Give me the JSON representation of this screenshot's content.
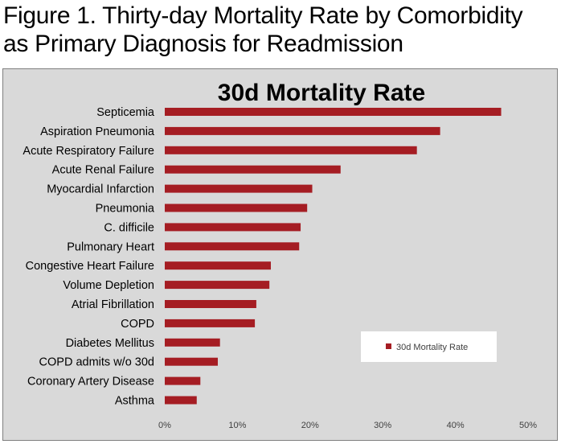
{
  "figure_title_lines": [
    "Figure 1. Thirty-day Mortality Rate by Comorbidity",
    "as Primary Diagnosis for Readmission"
  ],
  "chart_data": {
    "type": "bar",
    "orientation": "horizontal",
    "title": "30d Mortality Rate",
    "categories": [
      "Septicemia",
      "Aspiration Pneumonia",
      "Acute Respiratory Failure",
      "Acute Renal Failure",
      "Myocardial Infarction",
      "Pneumonia",
      "C. difficile",
      "Pulmonary Heart",
      "Congestive Heart Failure",
      "Volume Depletion",
      "Atrial Fibrillation",
      "COPD",
      "Diabetes Mellitus",
      "COPD admits w/o 30d",
      "Coronary Artery Disease",
      "Asthma"
    ],
    "series": [
      {
        "name": "30d Mortality Rate",
        "values": [
          46.3,
          37.9,
          34.7,
          24.2,
          20.3,
          19.6,
          18.7,
          18.5,
          14.6,
          14.4,
          12.6,
          12.4,
          7.6,
          7.3,
          4.9,
          4.4
        ]
      }
    ],
    "xlim": [
      0,
      50
    ],
    "xticks": [
      "0%",
      "10%",
      "20%",
      "30%",
      "40%",
      "50%"
    ],
    "grid": false,
    "legend_position": "lower-right",
    "colors": {
      "bar": "#a51d23",
      "plot_background": "#d9d9d9",
      "legend_background": "#ffffff"
    }
  }
}
